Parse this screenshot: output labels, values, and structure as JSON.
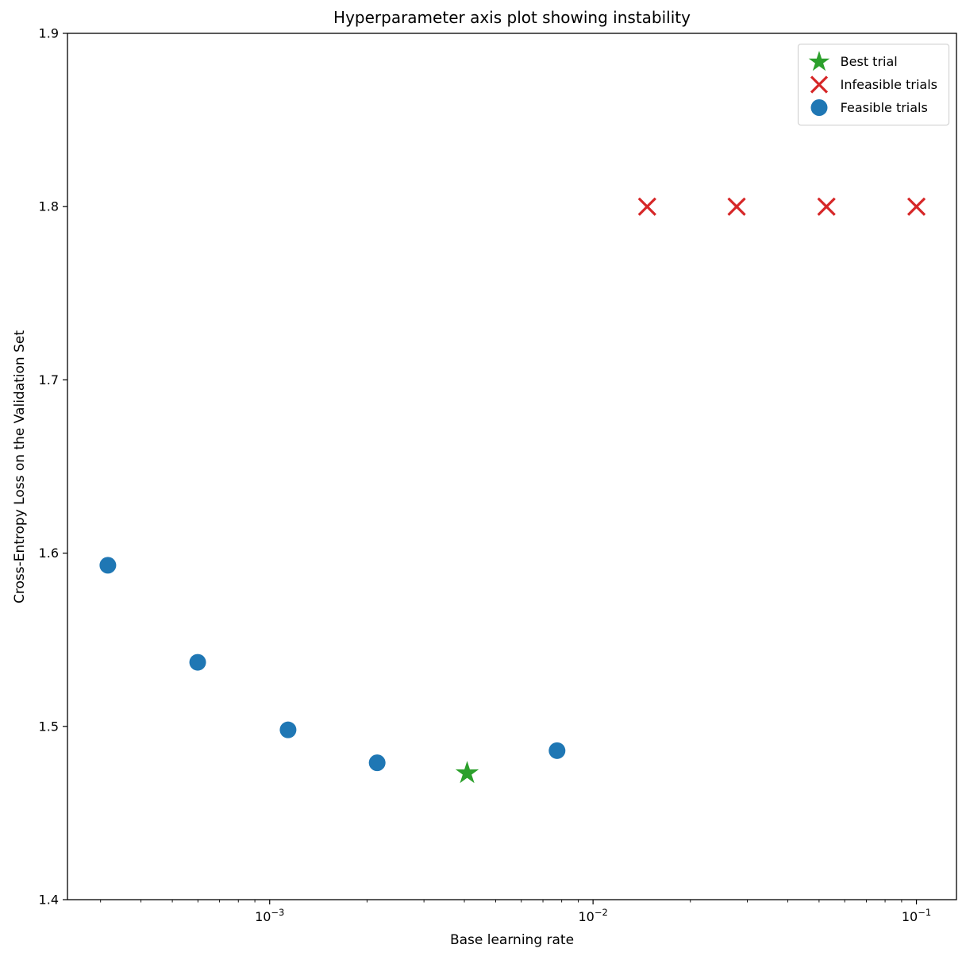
{
  "chart_data": {
    "type": "scatter",
    "title": "Hyperparameter axis plot showing instability",
    "xlabel": "Base learning rate",
    "ylabel": "Cross-Entropy Loss on the Validation Set",
    "xscale": "log",
    "xlim": [
      0.000237,
      0.133
    ],
    "ylim": [
      1.4,
      1.9
    ],
    "yticks": [
      1.4,
      1.5,
      1.6,
      1.7,
      1.8,
      1.9
    ],
    "xtick_exponents": [
      -3,
      -2,
      -1
    ],
    "grid": false,
    "legend_position": "upper right",
    "series": [
      {
        "name": "Best trial",
        "marker": "star",
        "color": "#2ca02c",
        "x": [
          0.00408
        ],
        "y": [
          1.473
        ]
      },
      {
        "name": "Infeasible trials",
        "marker": "x",
        "color": "#d62728",
        "x": [
          0.0147,
          0.0278,
          0.0527,
          0.1
        ],
        "y": [
          1.8,
          1.8,
          1.8,
          1.8
        ]
      },
      {
        "name": "Feasible trials",
        "marker": "circle",
        "color": "#1f77b4",
        "x": [
          0.000316,
          0.000599,
          0.00114,
          0.00215,
          0.00774
        ],
        "y": [
          1.593,
          1.537,
          1.498,
          1.479,
          1.486
        ]
      }
    ]
  }
}
